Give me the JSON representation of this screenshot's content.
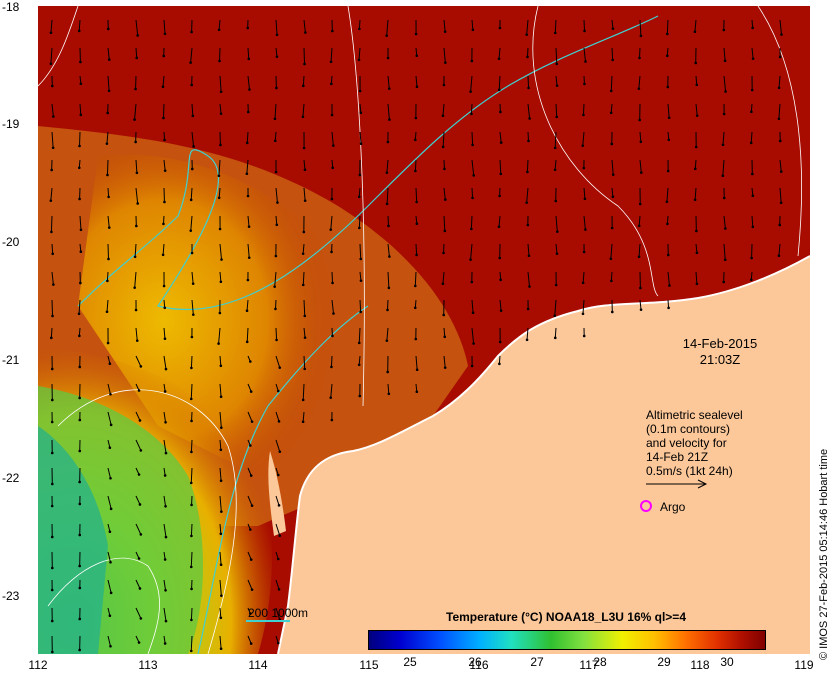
{
  "map": {
    "lat_ticks": [
      "-18",
      "-19",
      "-20",
      "-21",
      "-22",
      "-23"
    ],
    "lon_ticks": [
      "112",
      "113",
      "114",
      "115",
      "116",
      "117",
      "118",
      "119"
    ],
    "lon_range": [
      112,
      119
    ],
    "lat_range": [
      -23.5,
      -18
    ],
    "colors": {
      "sea_hot": "#a80c00",
      "land": "#fcc89a",
      "isobath": "#40d0d0",
      "contour": "#ffffff",
      "argo": "#ff00ff"
    }
  },
  "annotation": {
    "date": "14-Feb-2015",
    "time": "21:03Z",
    "altimetry_lines": [
      "Altimetric sealevel",
      "(0.1m contours)",
      "and velocity for",
      "14-Feb 21Z",
      "0.5m/s (1kt 24h)"
    ],
    "argo_label": "Argo",
    "isobath_label": "200  1000m"
  },
  "colorbar": {
    "title": "Temperature (°C) NOAA18_L3U 16% ql>=4",
    "ticks": [
      "25",
      "26",
      "27",
      "28",
      "29",
      "30"
    ]
  },
  "credit": "© IMOS 27-Feb-2015 05:14:46 Hobart time"
}
